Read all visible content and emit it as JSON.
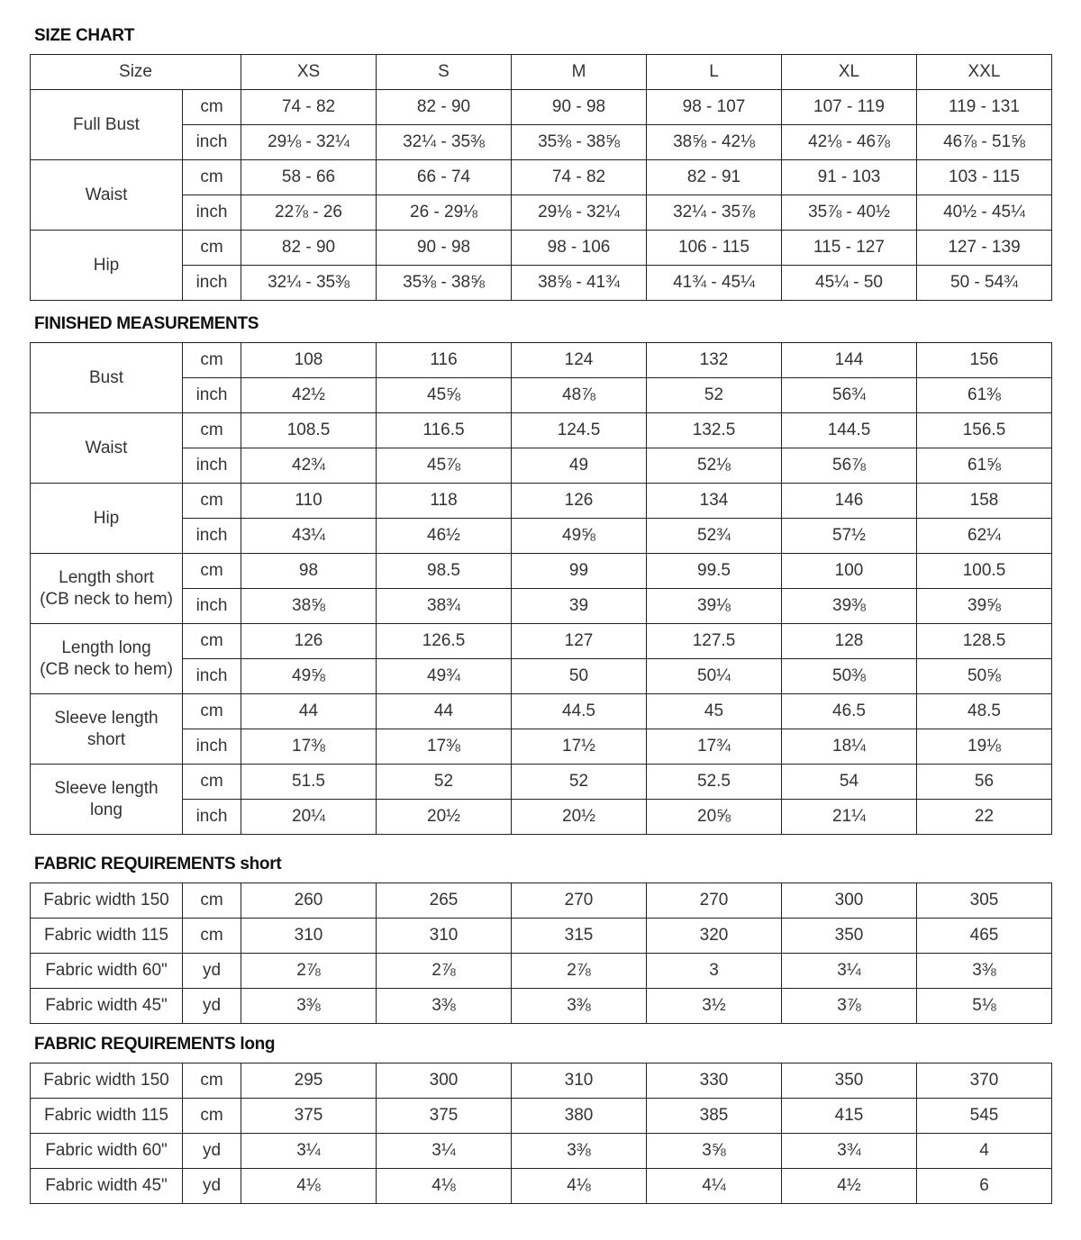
{
  "size_chart": {
    "title": "SIZE CHART",
    "size_label": "Size",
    "sizes": [
      "XS",
      "S",
      "M",
      "L",
      "XL",
      "XXL"
    ],
    "rows": [
      {
        "label": "Full Bust",
        "cm": [
          "74 - 82",
          "82 - 90",
          "90 - 98",
          "98 - 107",
          "107 - 119",
          "119 - 131"
        ],
        "inch": [
          "29⅛ - 32¼",
          "32¼ - 35⅜",
          "35⅜ - 38⅝",
          "38⅝ - 42⅛",
          "42⅛ - 46⅞",
          "46⅞ - 51⅝"
        ]
      },
      {
        "label": "Waist",
        "cm": [
          "58 - 66",
          "66 - 74",
          "74 - 82",
          "82 - 91",
          "91 - 103",
          "103 - 115"
        ],
        "inch": [
          "22⅞ - 26",
          "26 - 29⅛",
          "29⅛ - 32¼",
          "32¼ - 35⅞",
          "35⅞ - 40½",
          "40½ - 45¼"
        ]
      },
      {
        "label": "Hip",
        "cm": [
          "82 - 90",
          "90 - 98",
          "98 - 106",
          "106 - 115",
          "115 - 127",
          "127 - 139"
        ],
        "inch": [
          "32¼ - 35⅜",
          "35⅜ - 38⅝",
          "38⅝ - 41¾",
          "41¾ - 45¼",
          "45¼ - 50",
          "50 - 54¾"
        ]
      }
    ]
  },
  "finished": {
    "title": "FINISHED MEASUREMENTS",
    "rows": [
      {
        "label": "Bust",
        "cm": [
          "108",
          "116",
          "124",
          "132",
          "144",
          "156"
        ],
        "inch": [
          "42½",
          "45⅝",
          "48⅞",
          "52",
          "56¾",
          "61⅜"
        ]
      },
      {
        "label": "Waist",
        "cm": [
          "108.5",
          "116.5",
          "124.5",
          "132.5",
          "144.5",
          "156.5"
        ],
        "inch": [
          "42¾",
          "45⅞",
          "49",
          "52⅛",
          "56⅞",
          "61⅝"
        ]
      },
      {
        "label": "Hip",
        "cm": [
          "110",
          "118",
          "126",
          "134",
          "146",
          "158"
        ],
        "inch": [
          "43¼",
          "46½",
          "49⅝",
          "52¾",
          "57½",
          "62¼"
        ]
      },
      {
        "label": "Length short\n(CB neck to hem)",
        "cm": [
          "98",
          "98.5",
          "99",
          "99.5",
          "100",
          "100.5"
        ],
        "inch": [
          "38⅝",
          "38¾",
          "39",
          "39⅛",
          "39⅜",
          "39⅝"
        ]
      },
      {
        "label": "Length long\n(CB neck to hem)",
        "cm": [
          "126",
          "126.5",
          "127",
          "127.5",
          "128",
          "128.5"
        ],
        "inch": [
          "49⅝",
          "49¾",
          "50",
          "50¼",
          "50⅜",
          "50⅝"
        ]
      },
      {
        "label": "Sleeve length\nshort",
        "cm": [
          "44",
          "44",
          "44.5",
          "45",
          "46.5",
          "48.5"
        ],
        "inch": [
          "17⅜",
          "17⅜",
          "17½",
          "17¾",
          "18¼",
          "19⅛"
        ]
      },
      {
        "label": "Sleeve length\nlong",
        "cm": [
          "51.5",
          "52",
          "52",
          "52.5",
          "54",
          "56"
        ],
        "inch": [
          "20¼",
          "20½",
          "20½",
          "20⅝",
          "21¼",
          "22"
        ]
      }
    ]
  },
  "units": {
    "cm": "cm",
    "inch": "inch"
  },
  "fabric_short": {
    "title": "FABRIC REQUIREMENTS short",
    "rows": [
      {
        "label": "Fabric width 150",
        "unit": "cm",
        "values": [
          "260",
          "265",
          "270",
          "270",
          "300",
          "305"
        ]
      },
      {
        "label": "Fabric width 115",
        "unit": "cm",
        "values": [
          "310",
          "310",
          "315",
          "320",
          "350",
          "465"
        ]
      },
      {
        "label": "Fabric width 60\"",
        "unit": "yd",
        "values": [
          "2⅞",
          "2⅞",
          "2⅞",
          "3",
          "3¼",
          "3⅜"
        ]
      },
      {
        "label": "Fabric width 45\"",
        "unit": "yd",
        "values": [
          "3⅜",
          "3⅜",
          "3⅜",
          "3½",
          "3⅞",
          "5⅛"
        ]
      }
    ]
  },
  "fabric_long": {
    "title": "FABRIC REQUIREMENTS long",
    "rows": [
      {
        "label": "Fabric width 150",
        "unit": "cm",
        "values": [
          "295",
          "300",
          "310",
          "330",
          "350",
          "370"
        ]
      },
      {
        "label": "Fabric width 115",
        "unit": "cm",
        "values": [
          "375",
          "375",
          "380",
          "385",
          "415",
          "545"
        ]
      },
      {
        "label": "Fabric width 60\"",
        "unit": "yd",
        "values": [
          "3¼",
          "3¼",
          "3⅜",
          "3⅝",
          "3¾",
          "4"
        ]
      },
      {
        "label": "Fabric width 45\"",
        "unit": "yd",
        "values": [
          "4⅛",
          "4⅛",
          "4⅛",
          "4¼",
          "4½",
          "6"
        ]
      }
    ]
  }
}
